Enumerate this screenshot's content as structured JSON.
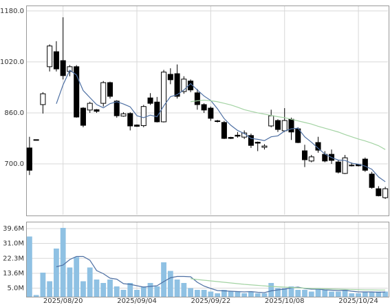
{
  "chart_data": [
    {
      "type": "candlestick",
      "categories": [
        null,
        null,
        null,
        null,
        null,
        "2025/08/20",
        null,
        null,
        null,
        null,
        null,
        null,
        null,
        null,
        null,
        null,
        "2025/09/04",
        null,
        null,
        null,
        null,
        null,
        null,
        null,
        null,
        null,
        null,
        "2025/09/22",
        null,
        null,
        null,
        null,
        null,
        null,
        null,
        null,
        null,
        null,
        "2025/10/08",
        null,
        null,
        null,
        null,
        null,
        null,
        null,
        null,
        null,
        null,
        "2025/10/24",
        null,
        null,
        null,
        null
      ],
      "open": [
        750,
        776,
        886,
        1005,
        1052,
        1024,
        990,
        1005,
        875,
        869,
        870,
        890,
        955,
        897,
        850,
        858,
        822,
        820,
        907,
        894,
        832,
        981,
        983,
        927,
        960,
        923,
        886,
        875,
        835,
        830,
        783,
        790,
        784,
        789,
        768,
        752,
        819,
        836,
        804,
        840,
        810,
        741,
        709,
        767,
        730,
        730,
        706,
        670,
        696,
        698,
        715,
        668,
        622,
        594
      ],
      "high": [
        785,
        776,
        925,
        1075,
        1085,
        1160,
        1010,
        1010,
        878,
        895,
        872,
        960,
        958,
        900,
        862,
        862,
        824,
        885,
        922,
        910,
        995,
        1000,
        1012,
        975,
        965,
        935,
        890,
        880,
        838,
        835,
        785,
        800,
        805,
        795,
        770,
        762,
        870,
        840,
        875,
        845,
        815,
        760,
        728,
        785,
        740,
        745,
        712,
        728,
        704,
        700,
        720,
        675,
        630,
        628
      ],
      "low": [
        665,
        776,
        858,
        990,
        990,
        965,
        975,
        845,
        815,
        860,
        860,
        880,
        905,
        845,
        848,
        805,
        816,
        815,
        885,
        830,
        830,
        950,
        905,
        920,
        925,
        870,
        860,
        835,
        830,
        778,
        778,
        782,
        778,
        750,
        740,
        745,
        815,
        800,
        800,
        775,
        765,
        690,
        705,
        735,
        705,
        700,
        670,
        668,
        692,
        692,
        675,
        622,
        598,
        590
      ],
      "close": [
        680,
        776,
        920,
        1070,
        998,
        977,
        1005,
        847,
        821,
        890,
        865,
        955,
        912,
        851,
        857,
        819,
        818,
        880,
        890,
        832,
        988,
        964,
        912,
        966,
        932,
        886,
        869,
        843,
        833,
        780,
        780,
        787,
        797,
        758,
        765,
        756,
        851,
        808,
        836,
        800,
        767,
        713,
        722,
        743,
        709,
        711,
        674,
        719,
        696,
        694,
        680,
        626,
        600,
        622
      ],
      "up_color": "#ffffff",
      "down_color": "#000000",
      "lines": [
        {
          "color": "#4d6fa3",
          "values": [
            null,
            null,
            null,
            null,
            888.8,
            948,
            994,
            979,
            930,
            908,
            886,
            876,
            889,
            895,
            888,
            879,
            851,
            845,
            853,
            848,
            882,
            911,
            917,
            932,
            952,
            932,
            913,
            899,
            873,
            842,
            821,
            805,
            795,
            780,
            777,
            773,
            785,
            788,
            803,
            810,
            812,
            785,
            768,
            749,
            731,
            720,
            712,
            711,
            702,
            699,
            693,
            683,
            659,
            644
          ]
        },
        {
          "color": "#a3d3a3",
          "values": [
            null,
            null,
            null,
            null,
            null,
            null,
            null,
            null,
            null,
            null,
            null,
            null,
            null,
            null,
            null,
            null,
            null,
            null,
            null,
            null,
            null,
            null,
            null,
            null,
            895,
            898,
            900,
            898,
            895,
            890,
            885,
            878,
            870,
            865,
            860,
            856,
            852,
            848,
            845,
            840,
            835,
            830,
            825,
            818,
            812,
            806,
            800,
            792,
            785,
            778,
            772,
            765,
            757,
            745
          ]
        }
      ],
      "ylim": [
        538,
        1197
      ],
      "yticks": [
        {
          "value": 1180,
          "label": "1180.0"
        },
        {
          "value": 1020,
          "label": "1020.0"
        },
        {
          "value": 860,
          "label": "860.0"
        },
        {
          "value": 700,
          "label": "700.0"
        }
      ],
      "grid": true
    },
    {
      "type": "bar",
      "values": [
        35,
        1,
        14,
        9,
        28,
        40,
        17,
        23,
        9,
        17,
        10,
        8,
        10,
        6,
        4,
        8,
        4,
        6,
        8,
        6,
        20,
        15,
        10,
        8,
        5,
        4,
        4,
        3,
        2,
        4,
        3,
        3,
        2,
        3,
        2,
        2,
        8,
        5,
        5,
        6,
        4,
        4,
        3,
        5,
        4,
        3,
        3,
        4,
        2,
        2,
        3,
        3,
        3,
        3
      ],
      "color": "#8fc1e3",
      "lines": [
        {
          "color": "#4d6fa3",
          "values": [
            null,
            null,
            null,
            null,
            17.4,
            18.4,
            21.6,
            23.4,
            23.4,
            21.2,
            15.2,
            13.4,
            10.8,
            10.2,
            7.6,
            7.2,
            6.4,
            5.6,
            6,
            6.4,
            8.8,
            11,
            11.8,
            11.8,
            11.6,
            8.4,
            6.2,
            4.8,
            3.6,
            3.4,
            3.2,
            3,
            2.8,
            3,
            2.6,
            2.4,
            3.4,
            4,
            4.4,
            5.2,
            5.6,
            4.8,
            4.4,
            4.4,
            4,
            3.8,
            3.6,
            3.8,
            3.2,
            2.8,
            2.8,
            2.8,
            2.6,
            2.8
          ]
        },
        {
          "color": "#a3d3a3",
          "values": [
            null,
            null,
            null,
            null,
            null,
            null,
            null,
            null,
            null,
            null,
            null,
            null,
            null,
            null,
            null,
            null,
            null,
            null,
            null,
            null,
            null,
            null,
            null,
            null,
            10.5,
            10,
            9.6,
            9.2,
            8.8,
            8.4,
            8,
            7.6,
            7.2,
            6.9,
            6.6,
            6.3,
            6,
            5.8,
            5.6,
            5.4,
            5.2,
            5,
            4.8,
            4.7,
            4.6,
            4.5,
            4.4,
            4.3,
            4.2,
            4.1,
            4,
            4,
            3.9,
            3.9
          ]
        }
      ],
      "ylim": [
        0,
        43.6
      ],
      "yticks": [
        {
          "value": 39.6,
          "label": "39.6M"
        },
        {
          "value": 31.0,
          "label": "31.0M"
        },
        {
          "value": 22.3,
          "label": "22.3M"
        },
        {
          "value": 13.6,
          "label": "13.6M"
        },
        {
          "value": 5.0,
          "label": "5.0M"
        }
      ],
      "grid": true
    }
  ]
}
